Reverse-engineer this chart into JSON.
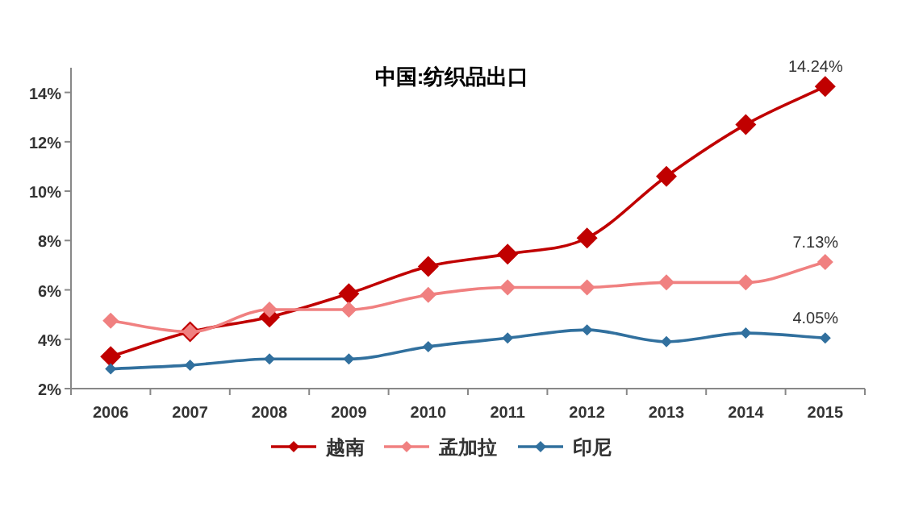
{
  "chart_data": {
    "type": "line",
    "title": "中国:纺织品出口",
    "categories": [
      "2006",
      "2007",
      "2008",
      "2009",
      "2010",
      "2011",
      "2012",
      "2013",
      "2014",
      "2015"
    ],
    "series": [
      {
        "name": "越南",
        "color": "#c00000",
        "values": [
          3.3,
          4.3,
          4.9,
          5.85,
          6.95,
          7.45,
          8.1,
          10.6,
          12.7,
          14.24
        ],
        "value_labels": [
          null,
          null,
          null,
          null,
          null,
          null,
          null,
          null,
          null,
          "14.24%"
        ]
      },
      {
        "name": "孟加拉",
        "color": "#f08080",
        "values": [
          4.75,
          4.3,
          5.2,
          5.2,
          5.8,
          6.1,
          6.1,
          6.3,
          6.3,
          7.13
        ],
        "value_labels": [
          null,
          null,
          null,
          null,
          null,
          null,
          null,
          null,
          null,
          "7.13%"
        ]
      },
      {
        "name": "印尼",
        "color": "#31709e",
        "values": [
          2.8,
          2.95,
          3.2,
          3.2,
          3.7,
          4.05,
          4.38,
          3.9,
          4.25,
          4.05
        ],
        "value_labels": [
          null,
          null,
          null,
          null,
          null,
          null,
          null,
          null,
          null,
          "4.05%"
        ]
      }
    ],
    "ylim": [
      2,
      15
    ],
    "yticks": [
      {
        "value": 2,
        "label": "2%"
      },
      {
        "value": 4,
        "label": "4%"
      },
      {
        "value": 6,
        "label": "6%"
      },
      {
        "value": 8,
        "label": "8%"
      },
      {
        "value": 10,
        "label": "10%"
      },
      {
        "value": 12,
        "label": "12%"
      },
      {
        "value": 14,
        "label": "14%"
      }
    ],
    "grid": false,
    "legend": "bottom",
    "marker": "diamond",
    "line_style": "solid"
  }
}
